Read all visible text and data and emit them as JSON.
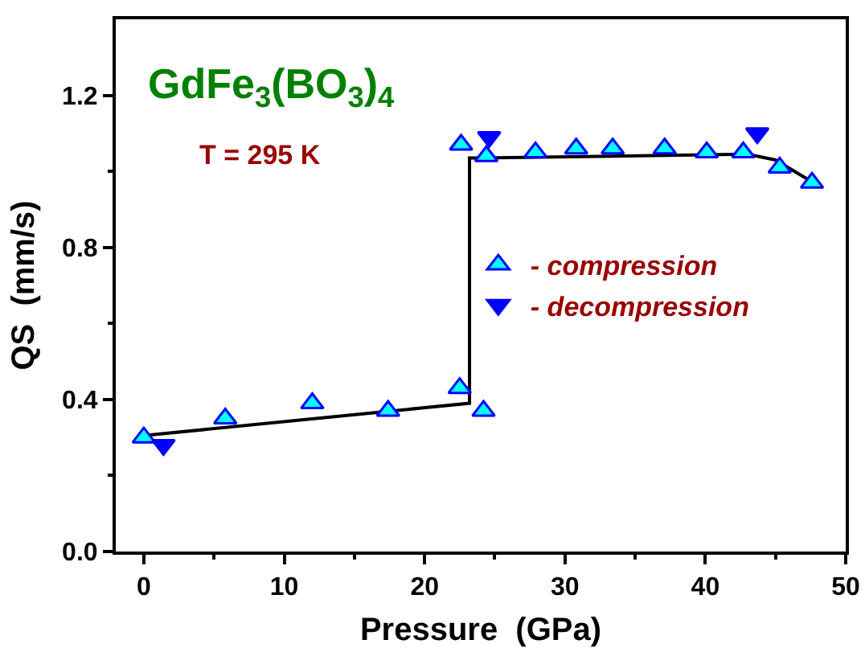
{
  "chart_data": {
    "type": "scatter",
    "xlabel": "Pressure  (GPa)",
    "ylabel": "QS  (mm/s)",
    "annotations": [
      "GdFe$_{3}$(BO$_{3}$)$_{4}$",
      "T = 295 K"
    ],
    "xlim": [
      -2,
      50
    ],
    "xticks": [
      0,
      10,
      20,
      30,
      40,
      50
    ],
    "ylim": [
      0,
      1.4
    ],
    "yticks": [
      {
        "value": 0,
        "label": "0.0"
      },
      {
        "value": 0.4,
        "label": "0.4"
      },
      {
        "value": 0.8,
        "label": "0.8"
      },
      {
        "value": 1.2,
        "label": "1.2"
      }
    ],
    "grid": false,
    "legend": "right",
    "series": [
      {
        "name": "- compression",
        "color": "#00ffff",
        "marker": "triangle",
        "x": [
          0,
          5.8,
          12,
          17.4,
          22.5,
          24.2,
          22.6,
          24.4,
          27.9,
          30.8,
          33.4,
          37.1,
          40.1,
          42.7,
          45.3,
          47.6
        ],
        "values": [
          0.3,
          0.35,
          0.39,
          0.37,
          0.43,
          0.37,
          1.07,
          1.04,
          1.05,
          1.06,
          1.06,
          1.06,
          1.05,
          1.05,
          1.01,
          0.97
        ]
      },
      {
        "name": "- decompression",
        "color": "#0000ff",
        "marker": "triangle-down",
        "x": [
          1.4,
          24.6,
          43.7
        ],
        "values": [
          0.28,
          1.09,
          1.1
        ]
      },
      {
        "type": "line",
        "color": "#000000",
        "marker": "none",
        "x": [
          0,
          23.2,
          23.2,
          24,
          43,
          45,
          47.7
        ],
        "values": [
          0.305,
          0.39,
          1.035,
          1.035,
          1.045,
          1.03,
          0.97
        ]
      }
    ]
  }
}
